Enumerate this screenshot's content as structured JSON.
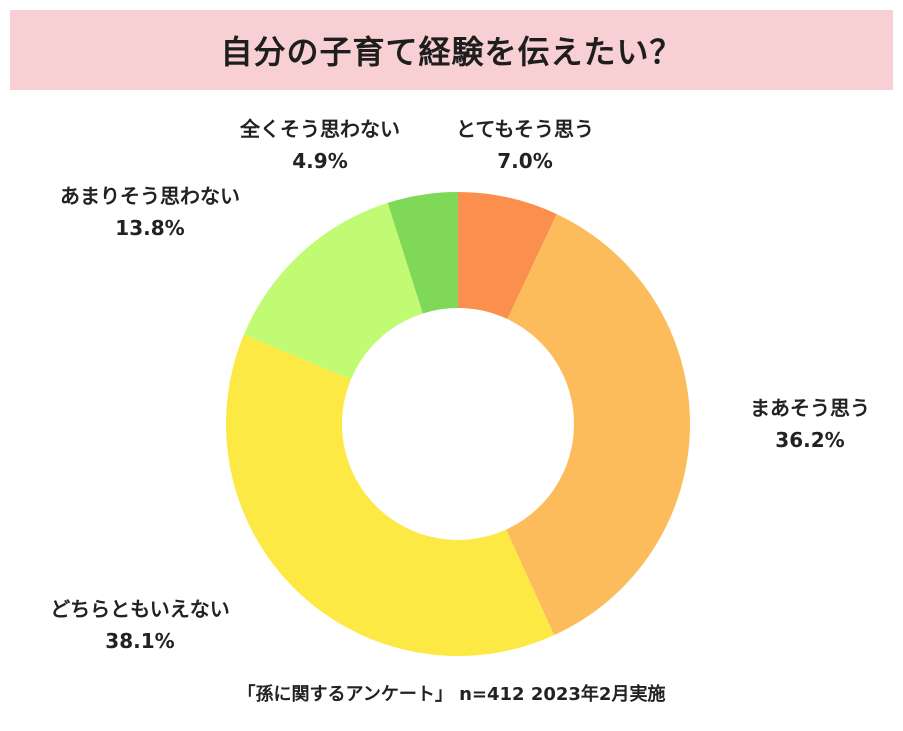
{
  "title": "自分の子育て経験を伝えたい？",
  "footer": "「孫に関するアンケート」 n=412 2023年2月実施",
  "chart_data": {
    "type": "pie",
    "variant": "donut",
    "unit": "%",
    "slices": [
      {
        "label": "とてもそう思う",
        "value": 7.0,
        "display": "7.0%",
        "color": "#fa8f4e"
      },
      {
        "label": "まあそう思う",
        "value": 36.2,
        "display": "36.2%",
        "color": "#fcbc5c"
      },
      {
        "label": "どちらともいえない",
        "value": 38.1,
        "display": "38.1%",
        "color": "#fde944"
      },
      {
        "label": "あまりそう思わない",
        "value": 13.8,
        "display": "13.8%",
        "color": "#c1fa73"
      },
      {
        "label": "全くそう思わない",
        "value": 4.9,
        "display": "4.9%",
        "color": "#80d858"
      }
    ]
  }
}
